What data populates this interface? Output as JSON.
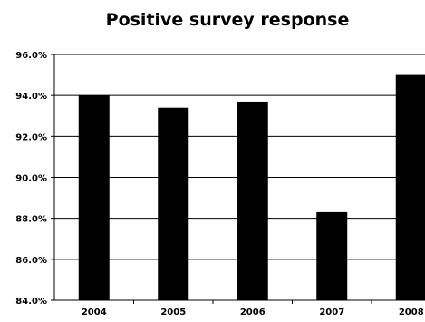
{
  "chart_data": {
    "type": "bar",
    "title": "Positive survey response",
    "xlabel": "",
    "ylabel": "",
    "categories": [
      "2004",
      "2005",
      "2006",
      "2007",
      "2008"
    ],
    "values": [
      94.0,
      93.4,
      93.7,
      88.3,
      95.0
    ],
    "ylim": [
      84.0,
      96.0
    ],
    "yticks": [
      84.0,
      86.0,
      88.0,
      90.0,
      92.0,
      94.0,
      96.0
    ],
    "ytick_labels": [
      "84.0%",
      "86.0%",
      "88.0%",
      "90.0%",
      "92.0%",
      "94.0%",
      "96.0%"
    ],
    "grid": true,
    "legend": "none",
    "bar_color": "#000000"
  }
}
